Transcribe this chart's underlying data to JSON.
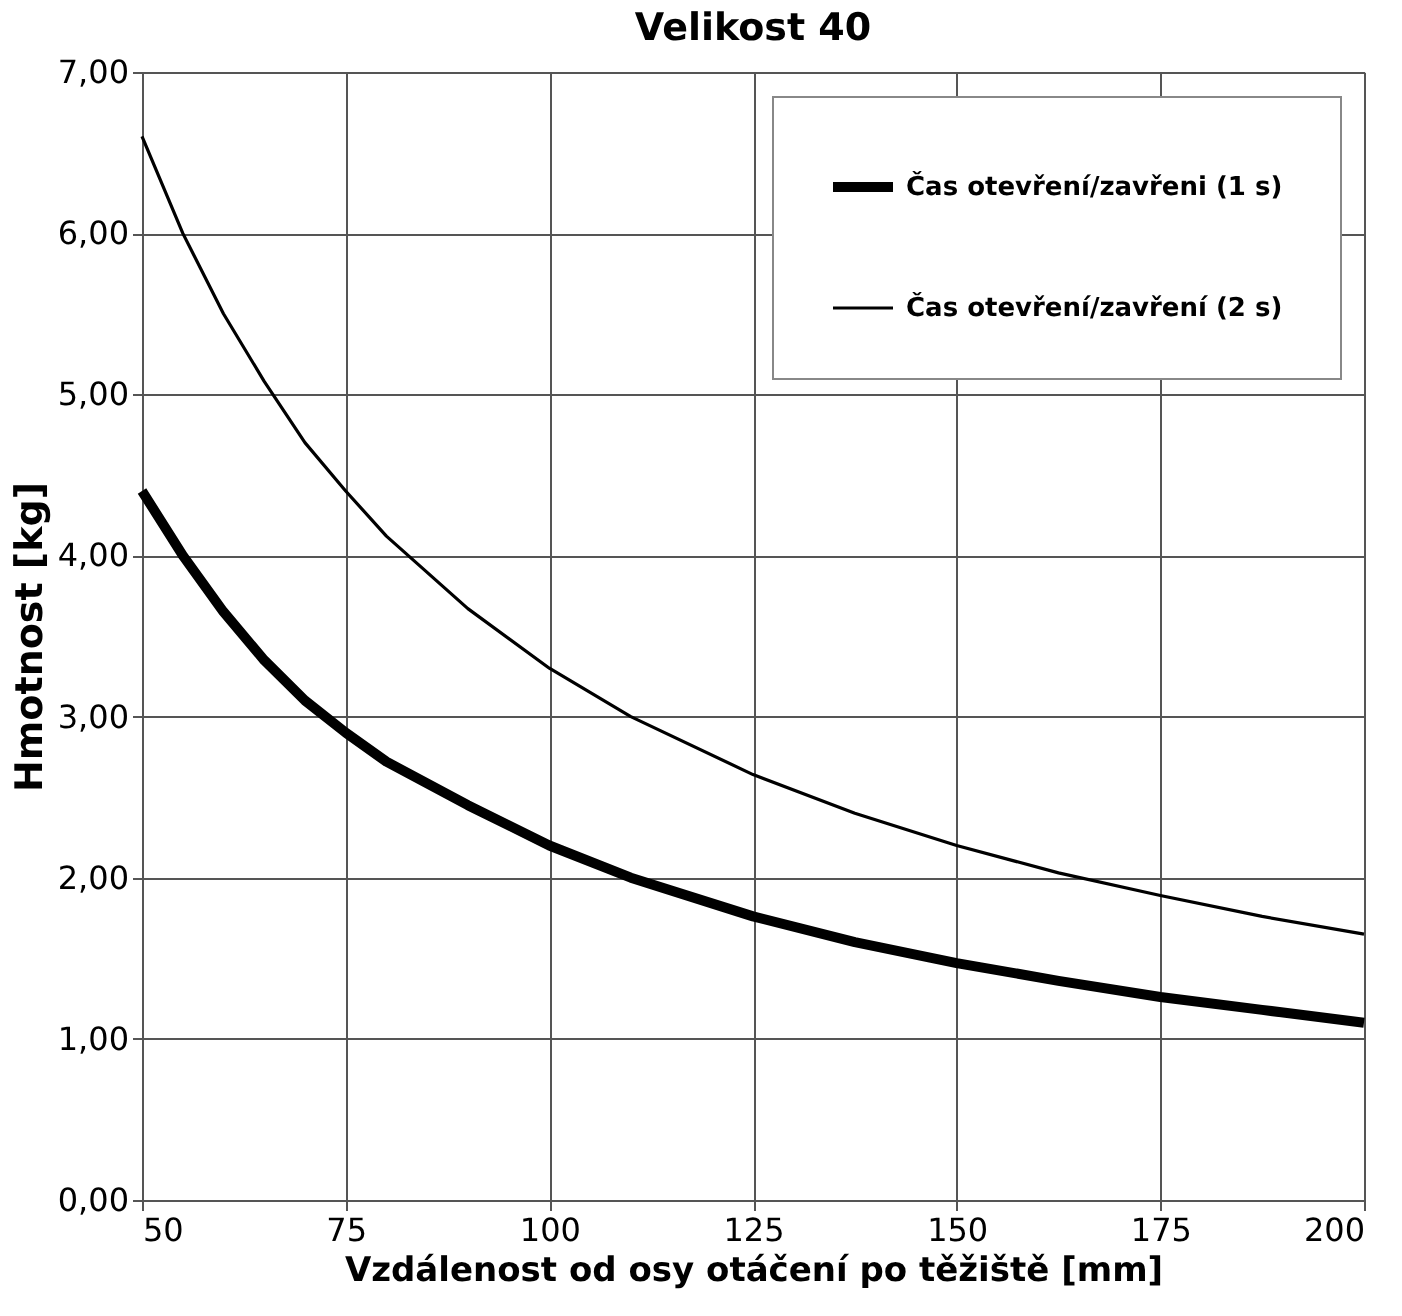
{
  "chart_data": {
    "type": "line",
    "title": "Velikost 40",
    "xlabel": "Vzdálenost od osy otáčení po těžiště [mm]",
    "ylabel": "Hmotnost [kg]",
    "series": [
      {
        "name": "Čas otevření/zavřeni (1 s)",
        "color": "#000000",
        "x": [
          50,
          55,
          60,
          65,
          70,
          75,
          80,
          90,
          100,
          110,
          125,
          137.5,
          150,
          162.5,
          175,
          187.5,
          200
        ],
        "values": [
          4.4,
          4.0,
          3.65,
          3.35,
          3.1,
          2.9,
          2.72,
          2.45,
          2.2,
          2.0,
          1.76,
          1.6,
          1.47,
          1.36,
          1.26,
          1.18,
          1.1
        ]
      },
      {
        "name": "Čas otevření/zavření (2 s)",
        "color": "#000000",
        "x": [
          50,
          55,
          60,
          65,
          70,
          75,
          80,
          90,
          100,
          110,
          125,
          137.5,
          150,
          162.5,
          175,
          187.5,
          200
        ],
        "values": [
          6.6,
          6.0,
          5.5,
          5.08,
          4.7,
          4.4,
          4.12,
          3.67,
          3.3,
          3.0,
          2.64,
          2.4,
          2.2,
          2.03,
          1.89,
          1.76,
          1.65
        ]
      }
    ],
    "xlim": [
      50,
      200
    ],
    "xticks": [
      50,
      75,
      100,
      125,
      150,
      175,
      200
    ],
    "ylim": [
      0,
      7
    ],
    "yticks": [
      {
        "value": 0,
        "label": "0,00"
      },
      {
        "value": 1,
        "label": "1,00"
      },
      {
        "value": 2,
        "label": "2,00"
      },
      {
        "value": 3,
        "label": "3,00"
      },
      {
        "value": 4,
        "label": "4,00"
      },
      {
        "value": 5,
        "label": "5,00"
      },
      {
        "value": 6,
        "label": "6,00"
      },
      {
        "value": 7,
        "label": "7,00"
      }
    ],
    "grid": true,
    "legend": "top right",
    "marker": "none",
    "line_style": "solid"
  }
}
